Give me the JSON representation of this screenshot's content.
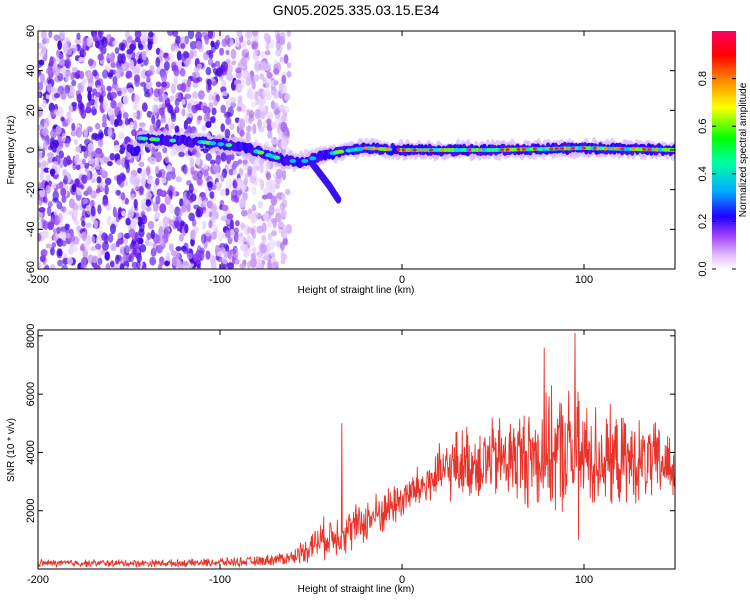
{
  "figure_title": "GN05.2025.335.03.15.E34",
  "chart_data": [
    {
      "type": "heatmap",
      "title": "GN05.2025.335.03.15.E34",
      "xlabel": "Height of straight line (km)",
      "ylabel": "Frequency (Hz)",
      "xlim": [
        -200,
        150
      ],
      "ylim": [
        -60,
        60
      ],
      "xticks": [
        -200,
        -100,
        0,
        100
      ],
      "yticks": [
        -60,
        -40,
        -20,
        0,
        20,
        40,
        60
      ],
      "colorbar": {
        "label": "Normalized spectral amplitude",
        "range": [
          0.0,
          1.0
        ],
        "ticks": [
          0.0,
          0.2,
          0.4,
          0.6,
          0.8
        ],
        "tick_labels": [
          "0.0",
          "0.2",
          "0.4",
          "0.6",
          "0.8"
        ]
      },
      "ridge": [
        {
          "x": -145,
          "y": 6
        },
        {
          "x": -130,
          "y": 5
        },
        {
          "x": -110,
          "y": 4
        },
        {
          "x": -90,
          "y": 2
        },
        {
          "x": -75,
          "y": -2
        },
        {
          "x": -65,
          "y": -5
        },
        {
          "x": -55,
          "y": -6
        },
        {
          "x": -45,
          "y": -3
        },
        {
          "x": -35,
          "y": -1
        },
        {
          "x": -20,
          "y": 1
        },
        {
          "x": 0,
          "y": 0
        },
        {
          "x": 50,
          "y": 0
        },
        {
          "x": 100,
          "y": 1
        },
        {
          "x": 150,
          "y": 0
        }
      ],
      "secondary_branch": [
        {
          "x": -50,
          "y": -6
        },
        {
          "x": -45,
          "y": -12
        },
        {
          "x": -40,
          "y": -18
        },
        {
          "x": -35,
          "y": -25
        }
      ],
      "noise_region_x": [
        -200,
        -62
      ]
    },
    {
      "type": "line",
      "xlabel": "Height of straight line (km)",
      "ylabel": "SNR (10 * v/v)",
      "xlim": [
        -200,
        150
      ],
      "ylim": [
        0,
        8200
      ],
      "xticks": [
        -200,
        -100,
        0,
        100
      ],
      "yticks": [
        2000,
        4000,
        6000,
        8000
      ],
      "series": [
        {
          "name": "SNR",
          "color": "#e8332a",
          "envelope": [
            {
              "x": -200,
              "mean": 200,
              "amp": 150
            },
            {
              "x": -120,
              "mean": 200,
              "amp": 150
            },
            {
              "x": -80,
              "mean": 260,
              "amp": 200
            },
            {
              "x": -60,
              "mean": 400,
              "amp": 300
            },
            {
              "x": -45,
              "mean": 1000,
              "amp": 800
            },
            {
              "x": -30,
              "mean": 1300,
              "amp": 900
            },
            {
              "x": -10,
              "mean": 2000,
              "amp": 900
            },
            {
              "x": 10,
              "mean": 2800,
              "amp": 900
            },
            {
              "x": 30,
              "mean": 3600,
              "amp": 1400
            },
            {
              "x": 60,
              "mean": 3800,
              "amp": 1800
            },
            {
              "x": 90,
              "mean": 4000,
              "amp": 2600
            },
            {
              "x": 120,
              "mean": 3700,
              "amp": 1800
            },
            {
              "x": 150,
              "mean": 3600,
              "amp": 1500
            }
          ],
          "peaks": [
            {
              "x": -33,
              "y": 5000
            },
            {
              "x": 78,
              "y": 7600
            },
            {
              "x": 95,
              "y": 8100
            },
            {
              "x": 97,
              "y": 1000
            }
          ]
        }
      ]
    }
  ]
}
